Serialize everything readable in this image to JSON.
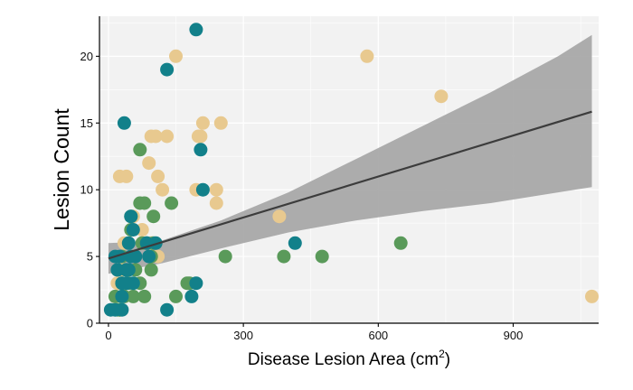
{
  "chart_data": {
    "type": "scatter",
    "title": "",
    "xlabel": "Disease Lesion Area (cm",
    "xlabel_superscript": "2",
    "xlabel_close": ")",
    "ylabel": "Lesion Count",
    "xlim": [
      -20,
      1090
    ],
    "ylim": [
      0,
      23
    ],
    "x_ticks": [
      0,
      300,
      600,
      900
    ],
    "x_tick_labels": [
      "0",
      "300",
      "600",
      "900"
    ],
    "y_ticks": [
      0,
      5,
      10,
      15,
      20
    ],
    "y_tick_labels": [
      "0",
      "5",
      "10",
      "15",
      "20"
    ],
    "grid": true,
    "legend": "none",
    "colors": {
      "panel_bg": "#f2f2f2",
      "grid": "#ffffff",
      "ribbon": "#a6a6a6",
      "trend": "#3c3c3c",
      "tan": "#e8c98f",
      "green": "#5a9a5a",
      "teal": "#12808a"
    },
    "trend_line": {
      "x": [
        0,
        1075
      ],
      "y": [
        4.85,
        15.85
      ]
    },
    "confidence_band": {
      "x": [
        0,
        120,
        250,
        400,
        550,
        700,
        850,
        1000,
        1075
      ],
      "upper": [
        6.0,
        6.2,
        7.7,
        9.8,
        12.3,
        14.8,
        17.3,
        20.0,
        21.6
      ],
      "lower": [
        3.7,
        4.5,
        5.6,
        6.8,
        7.7,
        8.4,
        9.0,
        9.8,
        10.2
      ]
    },
    "series": [
      {
        "color": "tan",
        "x": [
          150,
          575,
          740,
          1075,
          200,
          205,
          210,
          250,
          95,
          105,
          130,
          90,
          110,
          120,
          195,
          240,
          240,
          380,
          75,
          75,
          20,
          25,
          40,
          55,
          95,
          110,
          30,
          35,
          40,
          30,
          25
        ],
        "y": [
          20,
          20,
          17,
          2,
          14,
          14,
          15,
          15,
          14,
          14,
          14,
          12,
          11,
          10,
          10,
          10,
          9,
          8,
          7,
          6,
          3,
          11,
          11,
          8,
          6,
          5,
          4,
          6,
          3,
          2,
          1
        ]
      },
      {
        "color": "green",
        "x": [
          70,
          100,
          70,
          80,
          140,
          50,
          85,
          75,
          100,
          95,
          95,
          50,
          260,
          390,
          475,
          650,
          175,
          150,
          180,
          80,
          70,
          30,
          20,
          15,
          35,
          55,
          30,
          40,
          25,
          20,
          25,
          45,
          60
        ],
        "y": [
          13,
          8,
          9,
          9,
          9,
          8,
          6,
          6,
          6,
          5,
          4,
          7,
          5,
          5,
          5,
          6,
          3,
          2,
          3,
          2,
          3,
          3,
          4,
          2,
          2,
          2,
          5,
          4,
          1,
          1,
          1,
          3,
          4
        ]
      },
      {
        "color": "teal",
        "x": [
          195,
          130,
          35,
          205,
          210,
          50,
          55,
          45,
          85,
          105,
          415,
          90,
          60,
          50,
          15,
          25,
          40,
          20,
          45,
          30,
          55,
          40,
          30,
          195,
          185,
          130,
          5,
          15,
          30
        ],
        "y": [
          22,
          19,
          15,
          13,
          10,
          8,
          7,
          6,
          6,
          6,
          6,
          5,
          5,
          5,
          5,
          5,
          4,
          4,
          4,
          3,
          3,
          3,
          2,
          3,
          2,
          1,
          1,
          1,
          1
        ]
      }
    ]
  }
}
